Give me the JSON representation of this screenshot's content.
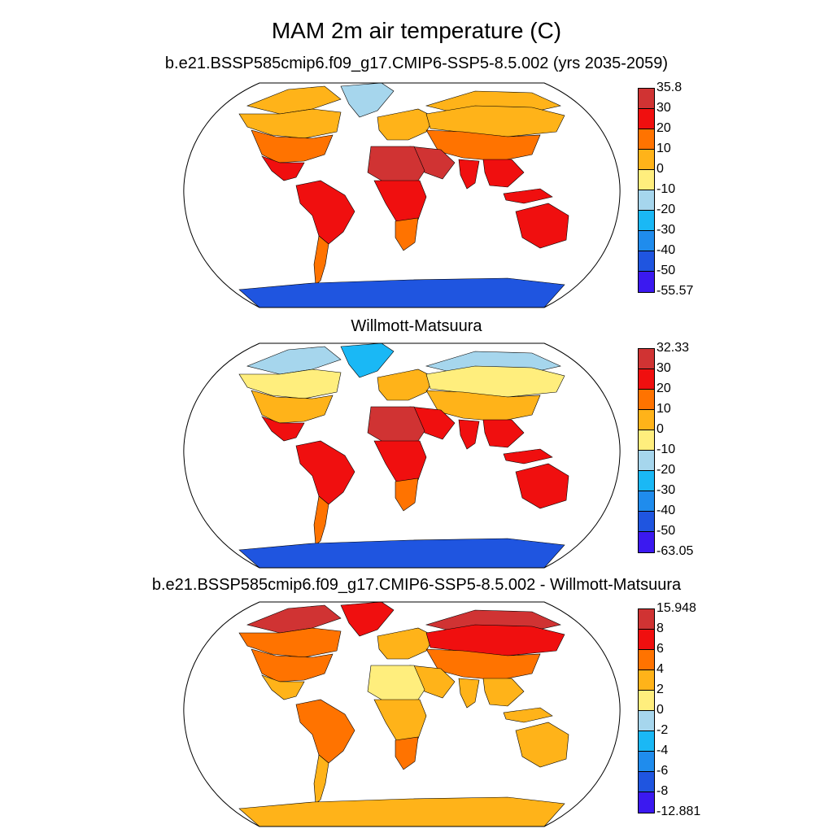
{
  "header": {
    "title": "MAM 2m air temperature (C)"
  },
  "panels": [
    {
      "id": "model",
      "subtitle": "b.e21.BSSP585cmip6.f09_g17.CMIP6-SSP5-8.5.002 (yrs 2035-2059)",
      "colorbar_labels": [
        "35.8",
        "30",
        "20",
        "10",
        "0",
        "-10",
        "-20",
        "-30",
        "-40",
        "-50",
        "-55.57"
      ],
      "palette": "absolute"
    },
    {
      "id": "obs",
      "subtitle": "Willmott-Matsuura",
      "colorbar_labels": [
        "32.33",
        "30",
        "20",
        "10",
        "0",
        "-10",
        "-20",
        "-30",
        "-40",
        "-50",
        "-63.05"
      ],
      "palette": "absolute"
    },
    {
      "id": "diff",
      "subtitle": "b.e21.BSSP585cmip6.f09_g17.CMIP6-SSP5-8.5.002 - Willmott-Matsuura",
      "colorbar_labels": [
        "15.948",
        "8",
        "6",
        "4",
        "2",
        "0",
        "-2",
        "-4",
        "-6",
        "-8",
        "-12.881"
      ],
      "palette": "difference"
    }
  ],
  "colors": {
    "absolute": [
      "#d03333",
      "#f00f0f",
      "#ff7300",
      "#ffb319",
      "#ffee7d",
      "#a6d6ed",
      "#1ab8f5",
      "#1f8ced",
      "#1f55e0",
      "#3b19f0"
    ],
    "difference": [
      "#d03333",
      "#f00f0f",
      "#ff7300",
      "#ffb319",
      "#ffee7d",
      "#a6d6ed",
      "#1ab8f5",
      "#1f8ced",
      "#1f55e0",
      "#3b19f0"
    ]
  },
  "map": {
    "projection": "robinson",
    "fields": {
      "model": {
        "arctic": "#ffb319",
        "greenland": "#a6d6ed",
        "canada": "#ffb319",
        "usa": "#ff7300",
        "mexico": "#f00f0f",
        "south_america": "#f00f0f",
        "south_america_south": "#ff7300",
        "europe": "#ffb319",
        "siberia": "#ffb319",
        "central_asia": "#ff7300",
        "middle_east": "#d03333",
        "sahara": "#d03333",
        "central_africa": "#f00f0f",
        "south_africa": "#ff7300",
        "india": "#f00f0f",
        "se_asia": "#f00f0f",
        "australia": "#f00f0f",
        "antarctica": "#1f55e0"
      },
      "obs": {
        "arctic": "#a6d6ed",
        "greenland": "#1ab8f5",
        "canada": "#ffee7d",
        "usa": "#ffb319",
        "mexico": "#f00f0f",
        "south_america": "#f00f0f",
        "south_america_south": "#ff7300",
        "europe": "#ffb319",
        "siberia": "#ffee7d",
        "central_asia": "#ffb319",
        "middle_east": "#f00f0f",
        "sahara": "#d03333",
        "central_africa": "#f00f0f",
        "south_africa": "#ff7300",
        "india": "#f00f0f",
        "se_asia": "#f00f0f",
        "australia": "#f00f0f",
        "antarctica": "#1f55e0"
      },
      "diff": {
        "arctic": "#d03333",
        "greenland": "#f00f0f",
        "canada": "#ff7300",
        "usa": "#ff7300",
        "mexico": "#ffb319",
        "south_america": "#ff7300",
        "south_america_south": "#ffb319",
        "europe": "#ffb319",
        "siberia": "#f00f0f",
        "central_asia": "#ff7300",
        "middle_east": "#ffb319",
        "sahara": "#ffee7d",
        "central_africa": "#ffb319",
        "south_africa": "#ff7300",
        "india": "#ffb319",
        "se_asia": "#ffb319",
        "australia": "#ffb319",
        "antarctica": "#ffb319"
      }
    }
  }
}
